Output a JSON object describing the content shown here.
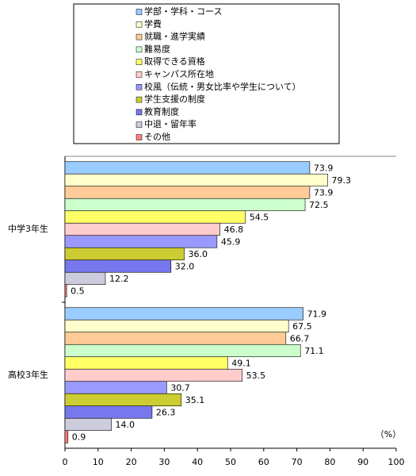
{
  "chart_data": {
    "type": "barh",
    "categories": [
      "中学3年生",
      "高校3年生"
    ],
    "series": [
      {
        "name": "学部・学科・コース",
        "color": "#99ccff",
        "values": [
          73.9,
          71.9
        ],
        "value_labels": [
          "73.9",
          "71.9"
        ]
      },
      {
        "name": "学費",
        "color": "#ffffcc",
        "values": [
          79.3,
          67.5
        ],
        "value_labels": [
          "79.3",
          "67.5"
        ]
      },
      {
        "name": "就職・進学実績",
        "color": "#ffcc99",
        "values": [
          73.9,
          66.7
        ],
        "value_labels": [
          "73.9",
          "66.7"
        ]
      },
      {
        "name": "難易度",
        "color": "#ccffcc",
        "values": [
          72.5,
          71.1
        ],
        "value_labels": [
          "72.5",
          "71.1"
        ]
      },
      {
        "name": "取得できる資格",
        "color": "#ffff66",
        "values": [
          54.5,
          49.1
        ],
        "value_labels": [
          "54.5",
          "49.1"
        ]
      },
      {
        "name": "キャンパス所在地",
        "color": "#ffcccc",
        "values": [
          46.8,
          53.5
        ],
        "value_labels": [
          "46.8",
          "53.5"
        ]
      },
      {
        "name": "校風（伝統・男女比率や学生について）",
        "color": "#9999ff",
        "values": [
          45.9,
          30.7
        ],
        "value_labels": [
          "45.9",
          "30.7"
        ]
      },
      {
        "name": "学生支援の制度",
        "color": "#cccc33",
        "values": [
          36.0,
          35.1
        ],
        "value_labels": [
          "36.0",
          "35.1"
        ]
      },
      {
        "name": "教育制度",
        "color": "#7777ee",
        "values": [
          32.0,
          26.3
        ],
        "value_labels": [
          "32.0",
          "26.3"
        ]
      },
      {
        "name": "中退・留年率",
        "color": "#ccccdd",
        "values": [
          12.2,
          14.0
        ],
        "value_labels": [
          "12.2",
          "14.0"
        ]
      },
      {
        "name": "その他",
        "color": "#ff8080",
        "values": [
          0.5,
          0.9
        ],
        "value_labels": [
          "0.5",
          "0.9"
        ]
      }
    ],
    "xlim": [
      0,
      100
    ],
    "xticks": [
      0,
      10,
      20,
      30,
      40,
      50,
      60,
      70,
      80,
      90,
      100
    ],
    "x_unit": "（%）"
  }
}
